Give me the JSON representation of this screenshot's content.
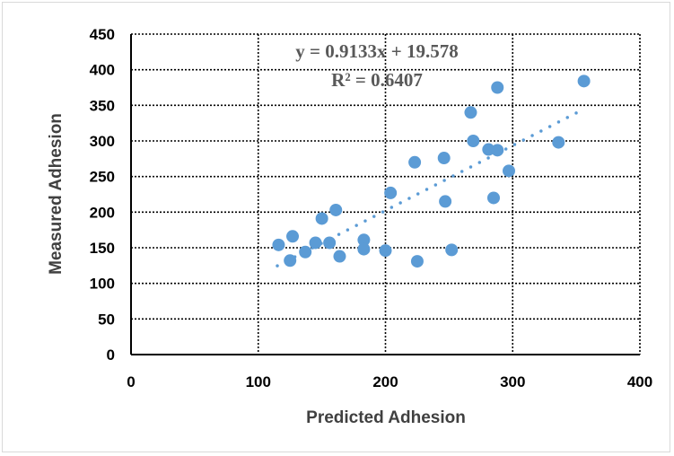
{
  "chart_data": {
    "type": "scatter",
    "xlabel": "Predicted Adhesion",
    "ylabel": "Measured Adhesion",
    "xlim": [
      0,
      400
    ],
    "ylim": [
      0,
      450
    ],
    "xticks": [
      0,
      100,
      200,
      300,
      400
    ],
    "yticks": [
      0,
      50,
      100,
      150,
      200,
      250,
      300,
      350,
      400,
      450
    ],
    "grid": true,
    "marker_color": "#5b9bd5",
    "trendline": {
      "type": "linear",
      "slope": 0.9133,
      "intercept": 19.578,
      "x_range": [
        115,
        355
      ],
      "equation_label": "y = 0.9133x + 19.578",
      "r2_label": "R² = 0.6407",
      "color": "#5b9bd5"
    },
    "points": [
      {
        "x": 116,
        "y": 154
      },
      {
        "x": 125,
        "y": 132
      },
      {
        "x": 127,
        "y": 166
      },
      {
        "x": 137,
        "y": 144
      },
      {
        "x": 145,
        "y": 157
      },
      {
        "x": 150,
        "y": 191
      },
      {
        "x": 156,
        "y": 157
      },
      {
        "x": 161,
        "y": 203
      },
      {
        "x": 164,
        "y": 138
      },
      {
        "x": 183,
        "y": 161
      },
      {
        "x": 183,
        "y": 148
      },
      {
        "x": 200,
        "y": 146
      },
      {
        "x": 204,
        "y": 227
      },
      {
        "x": 223,
        "y": 270
      },
      {
        "x": 225,
        "y": 131
      },
      {
        "x": 246,
        "y": 276
      },
      {
        "x": 247,
        "y": 215
      },
      {
        "x": 252,
        "y": 147
      },
      {
        "x": 267,
        "y": 340
      },
      {
        "x": 269,
        "y": 300
      },
      {
        "x": 281,
        "y": 288
      },
      {
        "x": 285,
        "y": 220
      },
      {
        "x": 288,
        "y": 375
      },
      {
        "x": 288,
        "y": 287
      },
      {
        "x": 297,
        "y": 258
      },
      {
        "x": 336,
        "y": 298
      },
      {
        "x": 356,
        "y": 384
      }
    ]
  }
}
